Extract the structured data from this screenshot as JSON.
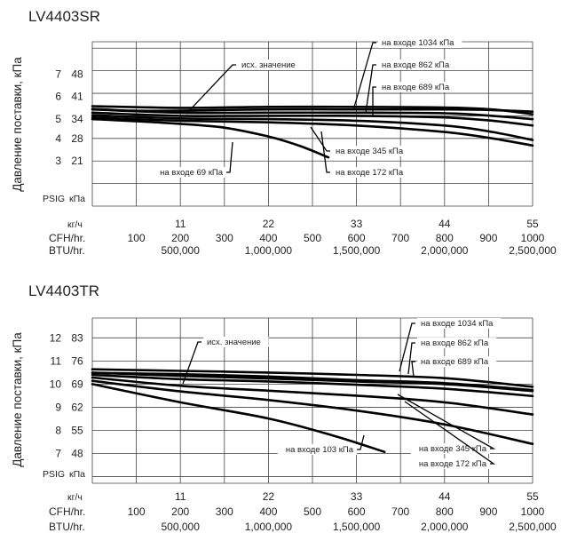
{
  "chart_data": [
    {
      "type": "line",
      "title": "LV4403SR",
      "ylabel": "Давление поставки, кПа",
      "y_unit_labels": {
        "psig": "PSIG",
        "kpa": "кПа"
      },
      "y_ticks": [
        {
          "psig": "3",
          "kpa": "21"
        },
        {
          "psig": "4",
          "kpa": "28"
        },
        {
          "psig": "5",
          "kpa": "34"
        },
        {
          "psig": "6",
          "kpa": "41"
        },
        {
          "psig": "7",
          "kpa": "48"
        }
      ],
      "ylim_kpa": [
        7,
        58
      ],
      "xlim_kg_h": [
        0,
        55
      ],
      "x_axes": [
        {
          "label": "кг/ч",
          "ticks": [
            {
              "x": 11,
              "t": "11"
            },
            {
              "x": 22,
              "t": "22"
            },
            {
              "x": 33,
              "t": "33"
            },
            {
              "x": 44,
              "t": "44"
            },
            {
              "x": 55,
              "t": "55"
            }
          ]
        },
        {
          "label": "CFH/hr.",
          "ticks": [
            {
              "x": 5.5,
              "t": "100"
            },
            {
              "x": 11,
              "t": "200"
            },
            {
              "x": 16.5,
              "t": "300"
            },
            {
              "x": 22,
              "t": "400"
            },
            {
              "x": 27.5,
              "t": "500"
            },
            {
              "x": 33,
              "t": "600"
            },
            {
              "x": 38.5,
              "t": "700"
            },
            {
              "x": 44,
              "t": "800"
            },
            {
              "x": 49.5,
              "t": "900"
            },
            {
              "x": 55,
              "t": "1000"
            }
          ]
        },
        {
          "label": "BTU/hr.",
          "ticks": [
            {
              "x": 11,
              "t": "500,000"
            },
            {
              "x": 22,
              "t": "1,000,000"
            },
            {
              "x": 33,
              "t": "1,500,000"
            },
            {
              "x": 44,
              "t": "2,000,000"
            },
            {
              "x": 55,
              "t": "2,500,000"
            }
          ]
        }
      ],
      "grid": true,
      "series": [
        {
          "name": "исх. значение",
          "x": [
            0,
            5,
            11,
            22,
            33,
            44,
            50,
            55
          ],
          "y": [
            37.2,
            36.6,
            36.6,
            37.0,
            37.0,
            37.0,
            36.8,
            36.3
          ]
        },
        {
          "name": "на входе 1034 кПа",
          "x": [
            0,
            11,
            22,
            33,
            44,
            50,
            55
          ],
          "y": [
            38.0,
            37.5,
            37.8,
            37.8,
            37.6,
            37.0,
            35.5
          ]
        },
        {
          "name": "на входе 862 кПа",
          "x": [
            0,
            11,
            22,
            33,
            44,
            50,
            55
          ],
          "y": [
            37.0,
            36.0,
            36.0,
            36.0,
            35.8,
            35.0,
            34.0
          ]
        },
        {
          "name": "на входе 689 кПа",
          "x": [
            0,
            11,
            22,
            33,
            44,
            50,
            55
          ],
          "y": [
            36.0,
            35.0,
            35.0,
            35.0,
            34.5,
            33.5,
            32.0
          ]
        },
        {
          "name": "на входе 345 кПа",
          "x": [
            0,
            11,
            22,
            33,
            44,
            50,
            55
          ],
          "y": [
            35.2,
            34.2,
            34.0,
            33.5,
            32.0,
            30.0,
            27.5
          ]
        },
        {
          "name": "на входе 172 кПа",
          "x": [
            0,
            11,
            22,
            33,
            44,
            50,
            55
          ],
          "y": [
            34.5,
            33.5,
            33.0,
            32.0,
            30.0,
            28.0,
            25.8
          ]
        },
        {
          "name": "на входе 69 кПа",
          "x": [
            0,
            8,
            16,
            22,
            26,
            29.5
          ],
          "y": [
            34.0,
            33.0,
            31.5,
            28.6,
            25.6,
            22.1
          ]
        }
      ],
      "annotations": [
        {
          "text": "исх. значение",
          "series": "исх. значение"
        },
        {
          "text": "на входе 1034 кПа",
          "series": "на входе 1034 кПа"
        },
        {
          "text": "на входе 862 кПа",
          "series": "на входе 862 кПа"
        },
        {
          "text": "на входе 689 кПа",
          "series": "на входе 689 кПа"
        },
        {
          "text": "на входе 345 кПа",
          "series": "на входе 345 кПа"
        },
        {
          "text": "на входе 172 кПа",
          "series": "на входе 172 кПа"
        },
        {
          "text": "на входе 69 кПа",
          "series": "на входе 69 кПа"
        }
      ]
    },
    {
      "type": "line",
      "title": "LV4403TR",
      "ylabel": "Давление поставки, кПа",
      "y_unit_labels": {
        "psig": "PSIG",
        "kpa": "кПа"
      },
      "y_ticks": [
        {
          "psig": "7",
          "kpa": "48"
        },
        {
          "psig": "8",
          "kpa": "55"
        },
        {
          "psig": "9",
          "kpa": "62"
        },
        {
          "psig": "10",
          "kpa": "69"
        },
        {
          "psig": "11",
          "kpa": "76"
        },
        {
          "psig": "12",
          "kpa": "83"
        }
      ],
      "ylim_kpa": [
        39,
        89
      ],
      "xlim_kg_h": [
        0,
        55
      ],
      "x_axes": [
        {
          "label": "кг/ч",
          "ticks": [
            {
              "x": 11,
              "t": "11"
            },
            {
              "x": 22,
              "t": "22"
            },
            {
              "x": 33,
              "t": "33"
            },
            {
              "x": 44,
              "t": "44"
            },
            {
              "x": 55,
              "t": "55"
            }
          ]
        },
        {
          "label": "CFH/hr.",
          "ticks": [
            {
              "x": 5.5,
              "t": "100"
            },
            {
              "x": 11,
              "t": "200"
            },
            {
              "x": 16.5,
              "t": "300"
            },
            {
              "x": 22,
              "t": "400"
            },
            {
              "x": 27.5,
              "t": "500"
            },
            {
              "x": 33,
              "t": "600"
            },
            {
              "x": 38.5,
              "t": "700"
            },
            {
              "x": 44,
              "t": "800"
            },
            {
              "x": 49.5,
              "t": "900"
            },
            {
              "x": 55,
              "t": "1000"
            }
          ]
        },
        {
          "label": "BTU/hr.",
          "ticks": [
            {
              "x": 11,
              "t": "500,000"
            },
            {
              "x": 22,
              "t": "1,000,000"
            },
            {
              "x": 33,
              "t": "1,500,000"
            },
            {
              "x": 44,
              "t": "2,000,000"
            },
            {
              "x": 55,
              "t": "2,500,000"
            }
          ]
        }
      ],
      "grid": true,
      "series": [
        {
          "name": "исх. значение",
          "x": [
            0,
            11,
            22,
            33,
            44,
            55
          ],
          "y": [
            72.4,
            72.0,
            71.3,
            70.2,
            69.3,
            67.2
          ]
        },
        {
          "name": "на входе 1034 кПа",
          "x": [
            0,
            11,
            22,
            33,
            44,
            55
          ],
          "y": [
            73.5,
            73.0,
            72.5,
            71.8,
            70.8,
            68.2
          ]
        },
        {
          "name": "на входе 862 кПа",
          "x": [
            0,
            11,
            22,
            33,
            44,
            55
          ],
          "y": [
            72.5,
            71.5,
            70.7,
            69.8,
            69.0,
            66.9
          ]
        },
        {
          "name": "на входе 689 кПа",
          "x": [
            0,
            11,
            22,
            33,
            44,
            55
          ],
          "y": [
            71.8,
            70.5,
            69.8,
            68.8,
            67.6,
            65.4
          ]
        },
        {
          "name": "на входе 345 кПа",
          "x": [
            0,
            11,
            22,
            33,
            44,
            55
          ],
          "y": [
            71.0,
            68.5,
            67.0,
            65.5,
            63.5,
            59.8
          ]
        },
        {
          "name": "на входе 172 кПа",
          "x": [
            0,
            11,
            22,
            33,
            44,
            55
          ],
          "y": [
            70.0,
            66.8,
            64.2,
            61.0,
            56.8,
            50.9
          ]
        },
        {
          "name": "на входе 103 кПа",
          "x": [
            0,
            11,
            22,
            30,
            36.5
          ],
          "y": [
            69.0,
            63.5,
            58.6,
            53.5,
            48.5
          ]
        }
      ],
      "annotations": [
        {
          "text": "исх. значение",
          "series": "исх. значение"
        },
        {
          "text": "на входе 1034 кПа",
          "series": "на входе 1034 кПа"
        },
        {
          "text": "на входе 862 кПа",
          "series": "на входе 862 кПа"
        },
        {
          "text": "на входе 689 кПа",
          "series": "на входе 689 кПа"
        },
        {
          "text": "на входе 345 кПа",
          "series": "на входе 345 кПа"
        },
        {
          "text": "на входе 172 кПа",
          "series": "на входе 172 кПа"
        },
        {
          "text": "на входе 103 кПа",
          "series": "на входе 103 кПа"
        }
      ]
    }
  ]
}
